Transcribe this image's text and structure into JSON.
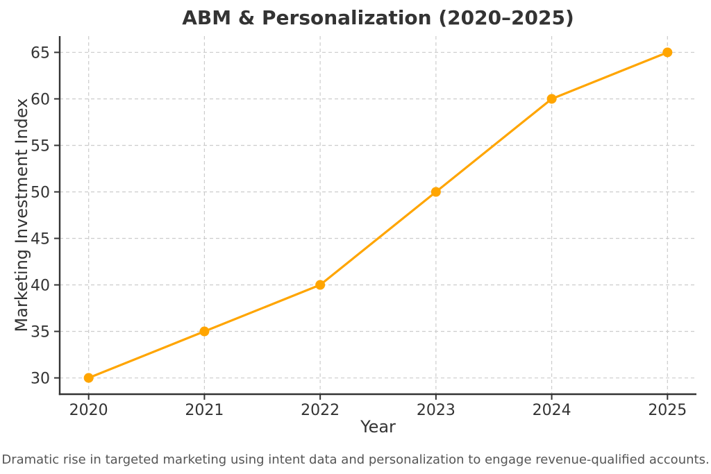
{
  "chart_data": {
    "type": "line",
    "title": "ABM & Personalization (2020–2025)",
    "xlabel": "Year",
    "ylabel": "Marketing Investment Index",
    "caption": "Dramatic rise in targeted marketing using intent data and personalization to engage revenue-qualified accounts.",
    "x": [
      2020,
      2021,
      2022,
      2023,
      2024,
      2025
    ],
    "series": [
      {
        "name": "Marketing Investment Index",
        "values": [
          30,
          35,
          40,
          50,
          60,
          65
        ],
        "color": "#FFA500",
        "marker": "circle"
      }
    ],
    "xticks": [
      "2020",
      "2021",
      "2022",
      "2023",
      "2024",
      "2025"
    ],
    "yticks": [
      30,
      35,
      40,
      45,
      50,
      55,
      60,
      65
    ],
    "xlim": [
      2019.75,
      2025.25
    ],
    "ylim": [
      28.25,
      66.75
    ],
    "grid": "both",
    "grid_line_style": "dashed",
    "legend_position": "none",
    "colors": {
      "line": "#FFA500",
      "grid": "#cccccc",
      "axis": "#333333",
      "tick_text": "#333333",
      "caption": "#555555",
      "background": "#ffffff"
    }
  }
}
